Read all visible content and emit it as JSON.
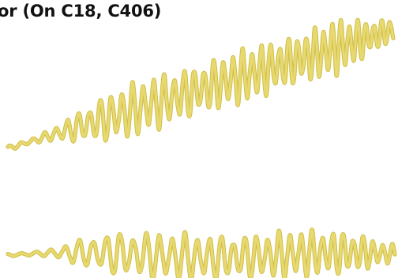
{
  "title": "or (On C18, C406)",
  "colors": {
    "waveform_stroke": "#e8d870",
    "waveform_outline": "#cfc04a",
    "title_text": "#111111",
    "background": "#ffffff"
  }
}
